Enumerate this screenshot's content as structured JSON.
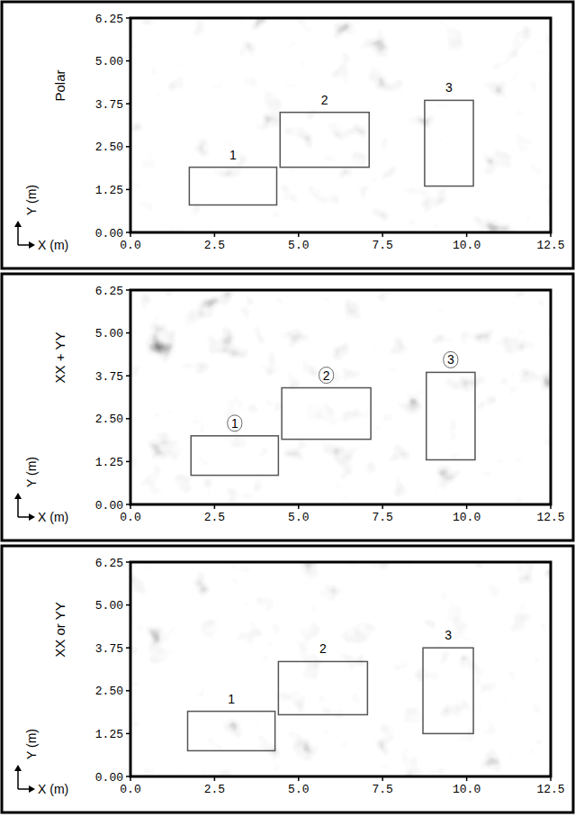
{
  "chart_data": [
    {
      "type": "image",
      "panel_label": "Polar",
      "x_label": "X (m)",
      "y_label": "Y (m)",
      "xlim": [
        0,
        12.5
      ],
      "ylim": [
        0,
        6.25
      ],
      "xticks": [
        {
          "value": 0,
          "label": "0.0"
        },
        2.5,
        {
          "value": 5,
          "label": "5.0"
        },
        7.5,
        {
          "value": 10,
          "label": "10.0"
        },
        12.5
      ],
      "yticks": [
        {
          "value": 0,
          "label": "0.00"
        },
        1.25,
        {
          "value": 2.5,
          "label": "2.50"
        },
        3.75,
        {
          "value": 5,
          "label": "5.00"
        },
        6.25
      ],
      "annotations": [
        {
          "text": "1",
          "x": [
            1.75,
            4.35
          ],
          "y": [
            0.8,
            1.9
          ]
        },
        {
          "text": "2",
          "x": [
            4.45,
            7.1
          ],
          "y": [
            1.9,
            3.5
          ]
        },
        {
          "text": "3",
          "x": [
            8.75,
            10.2
          ],
          "y": [
            1.35,
            3.85
          ]
        }
      ]
    },
    {
      "type": "image",
      "panel_label": "XX + YY",
      "x_label": "X (m)",
      "y_label": "Y (m)",
      "xlim": [
        0,
        12.5
      ],
      "ylim": [
        0,
        6.25
      ],
      "xticks": [
        {
          "value": 0,
          "label": "0.0"
        },
        2.5,
        {
          "value": 5,
          "label": "5.0"
        },
        7.5,
        {
          "value": 10,
          "label": "10.0"
        },
        12.5
      ],
      "yticks": [
        {
          "value": 0,
          "label": "0.00"
        },
        1.25,
        {
          "value": 2.5,
          "label": "2.50"
        },
        3.75,
        {
          "value": 5,
          "label": "5.00"
        },
        6.25
      ],
      "annotations": [
        {
          "text": "1",
          "x": [
            1.8,
            4.4
          ],
          "y": [
            0.85,
            2.0
          ]
        },
        {
          "text": "2",
          "x": [
            4.5,
            7.15
          ],
          "y": [
            1.9,
            3.4
          ]
        },
        {
          "text": "3",
          "x": [
            8.8,
            10.25
          ],
          "y": [
            1.3,
            3.85
          ]
        }
      ]
    },
    {
      "type": "image",
      "panel_label": "XX or YY",
      "x_label": "X (m)",
      "y_label": "Y (m)",
      "xlim": [
        0,
        12.5
      ],
      "ylim": [
        0,
        6.25
      ],
      "xticks": [
        {
          "value": 0,
          "label": "0.0"
        },
        2.5,
        {
          "value": 5,
          "label": "5.0"
        },
        7.5,
        {
          "value": 10,
          "label": "10.0"
        },
        12.5
      ],
      "yticks": [
        {
          "value": 0,
          "label": "0.00"
        },
        1.25,
        {
          "value": 2.5,
          "label": "2.50"
        },
        3.75,
        {
          "value": 5,
          "label": "5.00"
        },
        6.25
      ],
      "annotations": [
        {
          "text": "1",
          "x": [
            1.7,
            4.3
          ],
          "y": [
            0.75,
            1.9
          ]
        },
        {
          "text": "2",
          "x": [
            4.4,
            7.05
          ],
          "y": [
            1.8,
            3.35
          ]
        },
        {
          "text": "3",
          "x": [
            8.7,
            10.2
          ],
          "y": [
            1.25,
            3.75
          ]
        }
      ]
    }
  ]
}
